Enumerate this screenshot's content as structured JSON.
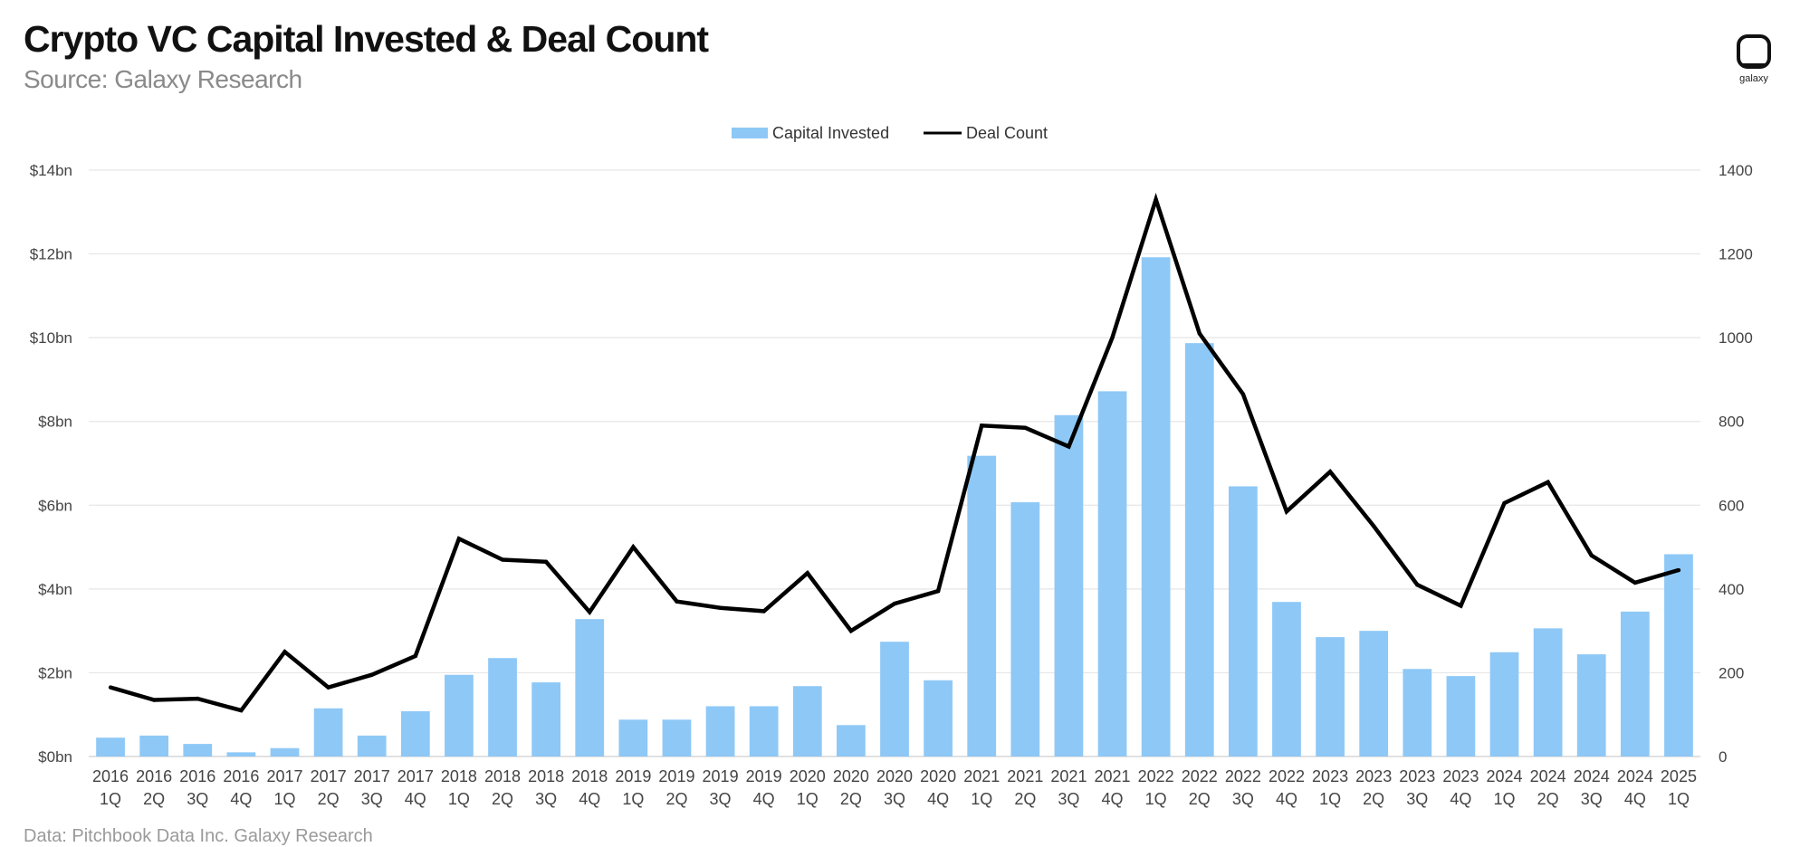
{
  "header": {
    "title": "Crypto VC Capital Invested & Deal Count",
    "subtitle": "Source: Galaxy Research",
    "logo_text": "galaxy"
  },
  "footer": {
    "note": "Data: Pitchbook Data Inc. Galaxy Research"
  },
  "colors": {
    "bar": "#8ec8f6",
    "line": "#000000",
    "grid": "#e6e6e6"
  },
  "chart_data": {
    "type": "bar",
    "title": "Crypto VC Capital Invested & Deal Count",
    "legend_position": "top-center",
    "grid": true,
    "categories": [
      [
        "2016",
        "1Q"
      ],
      [
        "2016",
        "2Q"
      ],
      [
        "2016",
        "3Q"
      ],
      [
        "2016",
        "4Q"
      ],
      [
        "2017",
        "1Q"
      ],
      [
        "2017",
        "2Q"
      ],
      [
        "2017",
        "3Q"
      ],
      [
        "2017",
        "4Q"
      ],
      [
        "2018",
        "1Q"
      ],
      [
        "2018",
        "2Q"
      ],
      [
        "2018",
        "3Q"
      ],
      [
        "2018",
        "4Q"
      ],
      [
        "2019",
        "1Q"
      ],
      [
        "2019",
        "2Q"
      ],
      [
        "2019",
        "3Q"
      ],
      [
        "2019",
        "4Q"
      ],
      [
        "2020",
        "1Q"
      ],
      [
        "2020",
        "2Q"
      ],
      [
        "2020",
        "3Q"
      ],
      [
        "2020",
        "4Q"
      ],
      [
        "2021",
        "1Q"
      ],
      [
        "2021",
        "2Q"
      ],
      [
        "2021",
        "3Q"
      ],
      [
        "2021",
        "4Q"
      ],
      [
        "2022",
        "1Q"
      ],
      [
        "2022",
        "2Q"
      ],
      [
        "2022",
        "3Q"
      ],
      [
        "2022",
        "4Q"
      ],
      [
        "2023",
        "1Q"
      ],
      [
        "2023",
        "2Q"
      ],
      [
        "2023",
        "3Q"
      ],
      [
        "2023",
        "4Q"
      ],
      [
        "2024",
        "1Q"
      ],
      [
        "2024",
        "2Q"
      ],
      [
        "2024",
        "3Q"
      ],
      [
        "2024",
        "4Q"
      ],
      [
        "2025",
        "1Q"
      ]
    ],
    "series": [
      {
        "name": "Capital Invested",
        "kind": "bar",
        "axis": "left",
        "unit": "bn USD",
        "values": [
          0.45,
          0.5,
          0.3,
          0.1,
          0.2,
          1.15,
          0.5,
          1.08,
          1.95,
          2.35,
          1.77,
          3.28,
          0.88,
          0.88,
          1.2,
          1.2,
          1.68,
          0.75,
          2.74,
          1.82,
          7.18,
          6.07,
          8.15,
          8.72,
          11.92,
          9.87,
          6.45,
          3.69,
          2.85,
          3.0,
          2.09,
          1.92,
          2.49,
          3.06,
          2.44,
          3.46,
          4.83
        ]
      },
      {
        "name": "Deal Count",
        "kind": "line",
        "axis": "right",
        "values": [
          165,
          135,
          138,
          110,
          250,
          165,
          195,
          240,
          520,
          470,
          465,
          345,
          500,
          370,
          355,
          347,
          438,
          300,
          365,
          395,
          790,
          785,
          740,
          1000,
          1330,
          1010,
          865,
          585,
          680,
          550,
          410,
          360,
          605,
          655,
          480,
          415,
          445
        ]
      }
    ],
    "y_left": {
      "range": [
        0,
        14
      ],
      "ticks": [
        "$0bn",
        "$2bn",
        "$4bn",
        "$6bn",
        "$8bn",
        "$10bn",
        "$12bn",
        "$14bn"
      ]
    },
    "y_right": {
      "range": [
        0,
        1400
      ],
      "ticks": [
        "0",
        "200",
        "400",
        "600",
        "800",
        "1000",
        "1200",
        "1400"
      ]
    }
  }
}
